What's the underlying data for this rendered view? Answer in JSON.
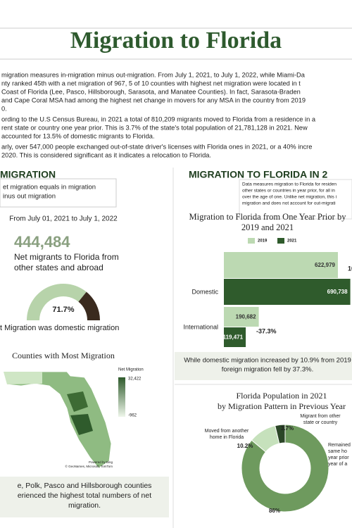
{
  "header": {
    "title": "Migration to Florida"
  },
  "intro": {
    "paragraphs": [
      [
        "migration measures in-migration minus out-migration. From July 1, 2021, to July 1, 2022, while Miami-Da",
        "nty ranked 45th with a net migration of 967, 5 of 10 counties with highest net migration were located in t",
        "Coast of Florida (Lee, Pasco, Hillsborough, Sarasota, and Manatee Counties). In fact, Sarasota-Braden",
        "and Cape Coral MSA had among the highest net change in movers for any MSA in the country from 2019",
        "0."
      ],
      [
        "ording to the U.S Census Bureau, in 2021 a total of 810,209 migrants moved to Florida from a residence in a",
        "rent state or country one year prior. This is 3.7% of the state's total population of 21,781,128 in 2021. New",
        "accounted for 13.5% of domestic migrants to Florida."
      ],
      [
        "arly, over 547,000 people exchanged out-of-state driver's licenses with Florida ones in 2021, or a 40% incre",
        "2020. This is considered significant as it indicates a relocation to Florida."
      ]
    ]
  },
  "left": {
    "heading": "MIGRATION",
    "definition": [
      "et migration equals in migration",
      "inus out migration"
    ],
    "period": "From July 01, 2021 to July 1, 2022",
    "big_number": "444,484",
    "big_label": [
      "Net migrants to Florida from",
      "other states and abroad"
    ],
    "map": {
      "title": "Counties with Most Migration",
      "legend_title": "Net Migration",
      "legend_max": "32,422",
      "legend_min": "-962",
      "credits": [
        "Powered by Bing",
        "© GeoNames, Microsoft, TomTom"
      ]
    },
    "footer": [
      "e, Polk, Pasco and Hillsborough counties",
      "erienced the highest total numbers of net",
      "migration."
    ]
  },
  "right": {
    "heading": "MIGRATION TO FLORIDA IN 2",
    "note": [
      "Data measures migration to Florida for residen",
      "other states or countries in year prior, for all in",
      "over the age of one. Unlike net migration, this i",
      "migration and does not account for out-migrati"
    ],
    "bar_caption": [
      "While domestic migration increased by 10.9% from 2019",
      "foreign migration fell by 37.3%."
    ]
  },
  "chart_data": [
    {
      "type": "gauge",
      "value": 71.7,
      "value_label": "71.7%",
      "range": [
        0,
        100
      ],
      "colors": [
        "#b7d3aa",
        "#3a2a1e"
      ],
      "caption": "t Migration was domestic migration"
    },
    {
      "type": "hbar",
      "title": [
        "Migration to Florida from One Year Prior by",
        "2019 and 2021"
      ],
      "categories": [
        "Domestic",
        "International"
      ],
      "series": [
        {
          "name": "2019",
          "color": "#bcd9b2",
          "values": [
            622979,
            190682
          ],
          "value_labels": [
            "622,979",
            "190,682"
          ]
        },
        {
          "name": "2021",
          "color": "#2f5b2c",
          "values": [
            690738,
            119471
          ],
          "value_labels": [
            "690,738",
            "119,471"
          ]
        }
      ],
      "change_labels": [
        "10",
        "-37.3%"
      ],
      "xlim": [
        0,
        700000
      ]
    },
    {
      "type": "donut",
      "title": [
        "Florida Population in 2021",
        "by Migration Pattern in Previous Year"
      ],
      "categories": [
        [
          "Remained",
          "same ho",
          "year prior",
          "year of a"
        ],
        [
          "Moved from another",
          "home in Florida"
        ],
        [
          "Migrant from other",
          "state or country"
        ]
      ],
      "values": [
        86,
        10.2,
        3.7
      ],
      "value_labels": [
        "86%",
        "10.2%",
        "3.7%"
      ],
      "colors": [
        "#6e9a5e",
        "#c6e1bc",
        "#2b4627"
      ]
    }
  ]
}
